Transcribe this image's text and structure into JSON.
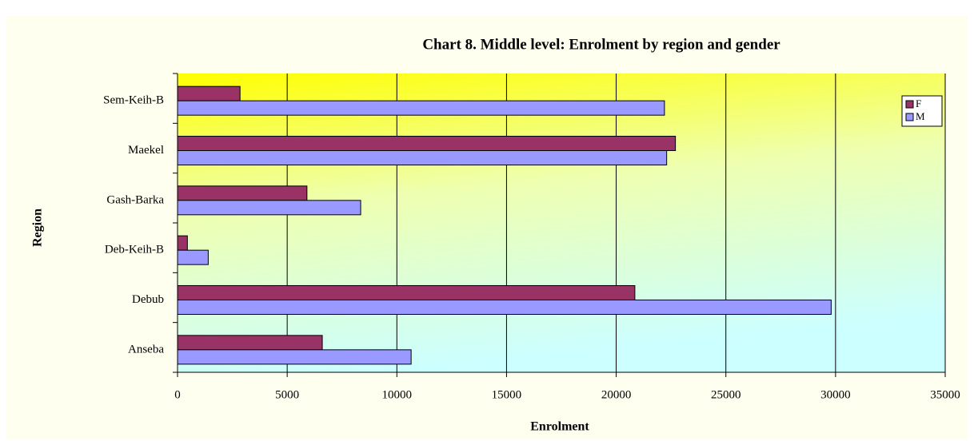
{
  "chart_data": {
    "type": "bar",
    "orientation": "horizontal",
    "title": "Chart 8. Middle level: Enrolment by region and gender",
    "x_label": "Enrolment",
    "y_label": "Region",
    "categories": [
      "Anseba",
      "Debub",
      "Deb-Keih-B",
      "Gash-Barka",
      "Maekel",
      "Sem-Keih-B"
    ],
    "series": [
      {
        "name": "F",
        "color": "#993366",
        "values": [
          6600,
          20850,
          450,
          5900,
          22700,
          2850
        ]
      },
      {
        "name": "M",
        "color": "#9999ff",
        "values": [
          10650,
          29800,
          1400,
          8350,
          22300,
          22200
        ]
      }
    ],
    "xlim": [
      0,
      35000
    ],
    "xticks": [
      0,
      5000,
      10000,
      15000,
      20000,
      25000,
      30000,
      35000
    ],
    "grid": true,
    "legend": "top-right"
  }
}
